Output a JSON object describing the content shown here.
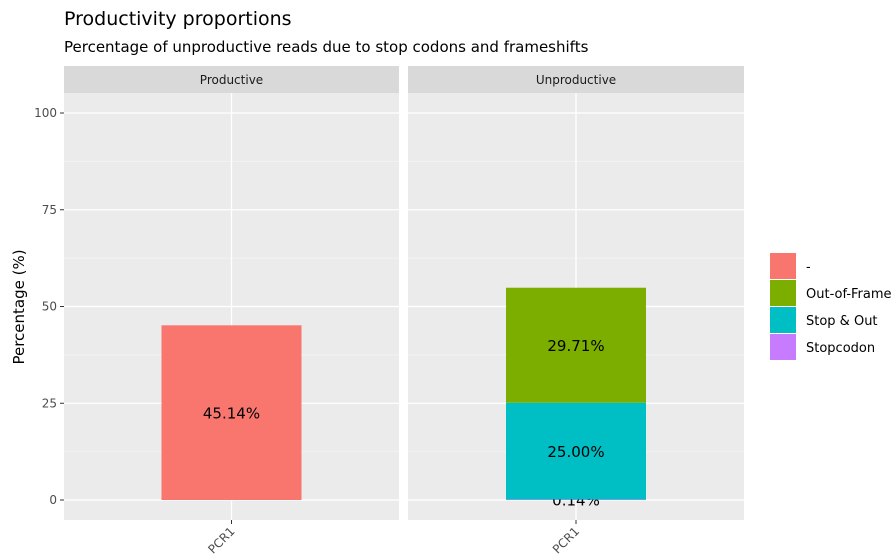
{
  "chart_data": {
    "type": "bar",
    "title": "Productivity proportions",
    "subtitle": "Percentage of unproductive reads due to stop codons and frameshifts",
    "ylabel": "Percentage (%)",
    "xlabel": "",
    "ylim": [
      0,
      100
    ],
    "yticks": [
      0,
      25,
      50,
      75,
      100
    ],
    "facets": [
      "Productive",
      "Unproductive"
    ],
    "categories": [
      "PCR1"
    ],
    "legend": {
      "position": "right",
      "entries": [
        {
          "name": "-",
          "color": "#F8766D"
        },
        {
          "name": "Out-of-Frame",
          "color": "#7CAE00"
        },
        {
          "name": "Stop & Out",
          "color": "#00BFC4"
        },
        {
          "name": "Stopcodon",
          "color": "#C77CFF"
        }
      ]
    },
    "bars": [
      {
        "facet": "Productive",
        "category": "PCR1",
        "segment": "-",
        "value": 45.14,
        "label": "45.14%"
      },
      {
        "facet": "Unproductive",
        "category": "PCR1",
        "segment": "Stopcodon",
        "value": 0.14,
        "label": "0.14%"
      },
      {
        "facet": "Unproductive",
        "category": "PCR1",
        "segment": "Stop & Out",
        "value": 25.0,
        "label": "25.00%"
      },
      {
        "facet": "Unproductive",
        "category": "PCR1",
        "segment": "Out-of-Frame",
        "value": 29.71,
        "label": "29.71%"
      }
    ],
    "grid": true
  }
}
